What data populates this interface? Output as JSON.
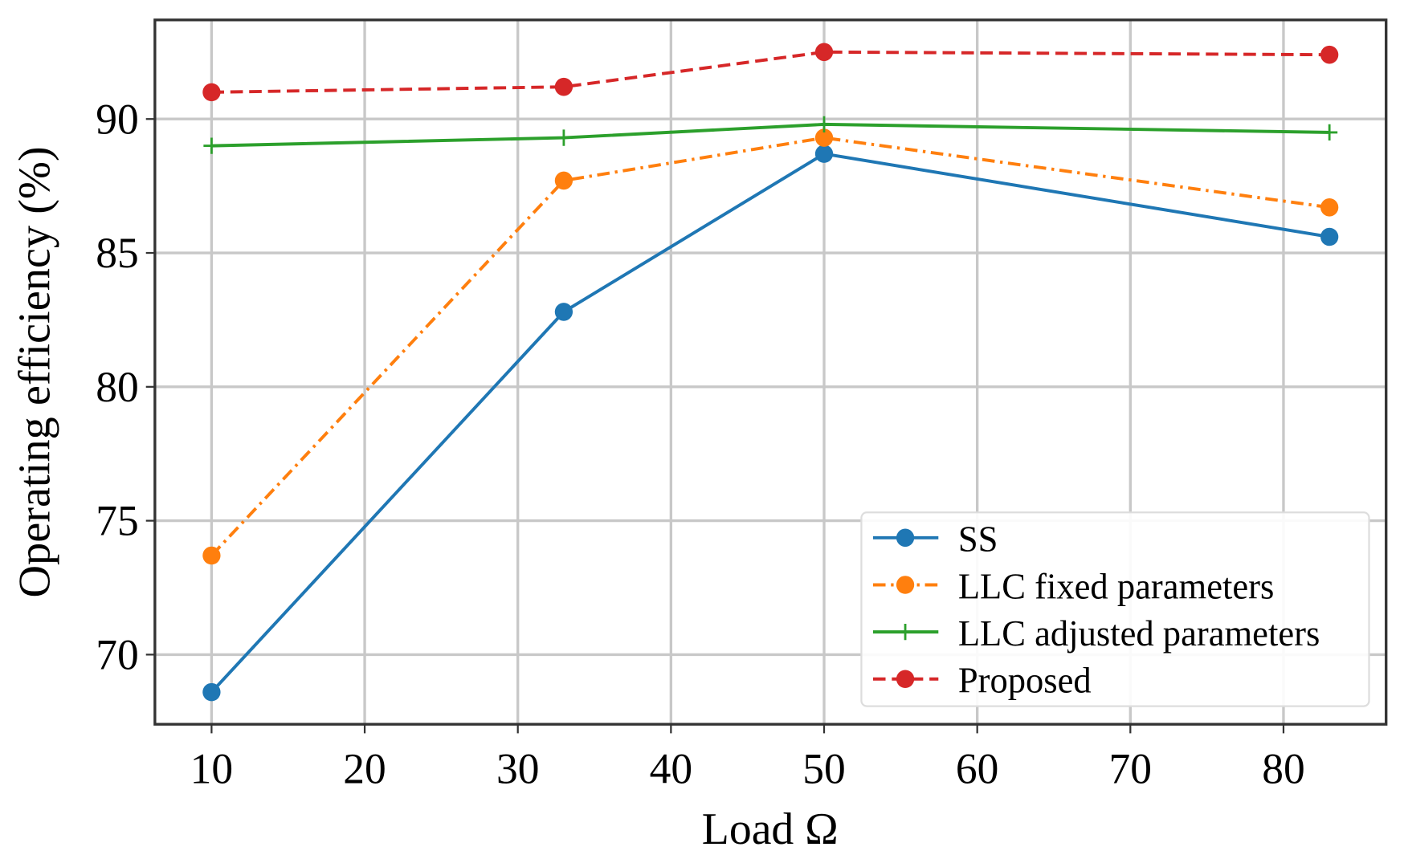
{
  "chart_data": {
    "type": "line",
    "title": "",
    "xlabel": "Load Ω",
    "ylabel": "Operating efficiency (%)",
    "xlim": [
      6.3,
      86.7
    ],
    "ylim": [
      67.4,
      93.7
    ],
    "xticks": [
      10,
      20,
      30,
      40,
      50,
      60,
      70,
      80
    ],
    "yticks": [
      70,
      75,
      80,
      85,
      90
    ],
    "grid": true,
    "legend_position": "lower-right",
    "x": [
      10,
      33,
      50,
      83
    ],
    "series": [
      {
        "name": "SS",
        "values": [
          68.6,
          82.8,
          88.7,
          85.6
        ],
        "color": "#1f77b4",
        "dash": "solid",
        "marker": "circle"
      },
      {
        "name": "LLC fixed parameters",
        "values": [
          73.7,
          87.7,
          89.3,
          86.7
        ],
        "color": "#ff7f0e",
        "dash": "dashdot",
        "marker": "circle"
      },
      {
        "name": "LLC adjusted parameters",
        "values": [
          89.0,
          89.3,
          89.8,
          89.5
        ],
        "color": "#2ca02c",
        "dash": "solid",
        "marker": "plus"
      },
      {
        "name": "Proposed",
        "values": [
          91.0,
          91.2,
          92.5,
          92.4
        ],
        "color": "#d62728",
        "dash": "dashed",
        "marker": "circle"
      }
    ]
  }
}
